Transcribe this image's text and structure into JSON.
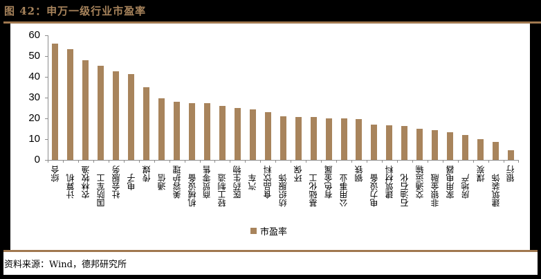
{
  "header": {
    "title": "图 42：申万一级行业市盈率"
  },
  "footer": {
    "source": "资料来源：Wind，德邦研究所"
  },
  "colors": {
    "bar": "#A8845C",
    "accent_rule": "#A0784F",
    "background": "#000000",
    "panel": "#FFFFFF"
  },
  "legend": {
    "label": "市盈率"
  },
  "chart_data": {
    "type": "bar",
    "title": "申万一级行业市盈率",
    "xlabel": "",
    "ylabel": "",
    "ylim": [
      0,
      60
    ],
    "yticks": [
      0,
      10,
      20,
      30,
      40,
      50,
      60
    ],
    "grid": false,
    "legend_position": "bottom",
    "categories": [
      "综合",
      "计算机",
      "农林牧渔",
      "国防军工",
      "社会服务",
      "电子",
      "传媒",
      "通信",
      "美容护理",
      "机械设备",
      "商贸零售",
      "轻工制造",
      "医药生物",
      "汽车",
      "食品饮料",
      "纺织服饰",
      "环保",
      "基础化工",
      "有色金属",
      "公用事业",
      "钢铁",
      "电力设备",
      "建筑材料",
      "石油石化",
      "交通运输",
      "非银金融",
      "家用电器",
      "房地产",
      "煤炭",
      "建筑装饰",
      "银行"
    ],
    "series": [
      {
        "name": "市盈率",
        "values": [
          56.0,
          53.3,
          48.0,
          45.4,
          42.7,
          41.2,
          35.1,
          29.6,
          28.0,
          27.4,
          27.2,
          25.9,
          25.0,
          24.3,
          23.0,
          21.0,
          20.7,
          20.6,
          20.1,
          19.9,
          19.7,
          16.9,
          16.6,
          16.4,
          15.0,
          14.2,
          13.3,
          11.9,
          9.9,
          8.6,
          4.8
        ]
      }
    ]
  }
}
